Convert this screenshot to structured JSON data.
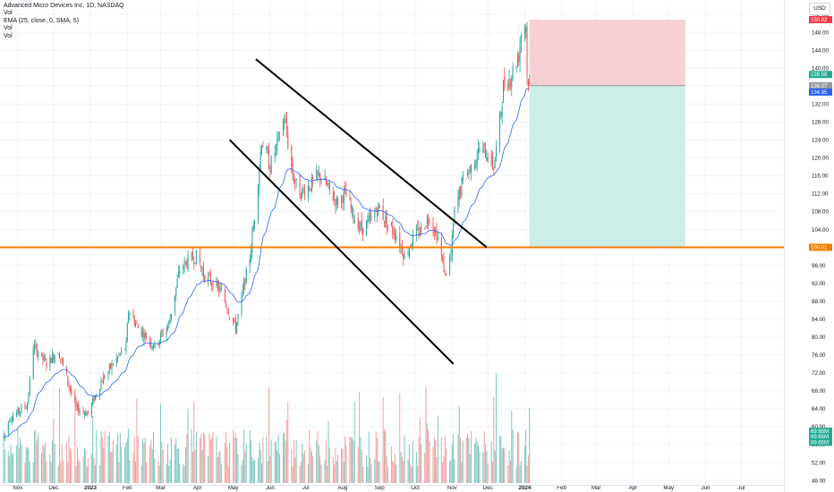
{
  "legend": {
    "title": "Advanced Micro Devices Inc, 1D, NASDAQ",
    "line2": "Vol",
    "line3": "EMA (25, close, 0, SMA, 5)",
    "line4": "Vol",
    "line5": "Vol"
  },
  "currency_button": "USD",
  "colors": {
    "up": "#26a69a",
    "down": "#ef5350",
    "ema": "#2962ff",
    "support": "#f57c00",
    "trendline": "#000000",
    "stop_zone": "#f8d0d4",
    "target_zone": "#cdeee7"
  },
  "chart_data": {
    "type": "candlestick",
    "title": "Advanced Micro Devices Inc, 1D, NASDAQ",
    "symbol": "AMD",
    "interval": "1D",
    "exchange": "NASDAQ",
    "x_ticks": [
      "Nov",
      "Dec",
      "2023",
      "Feb",
      "Mar",
      "Apr",
      "May",
      "Jun",
      "Jul",
      "Aug",
      "Sep",
      "Oct",
      "Nov",
      "Dec",
      "2024",
      "Feb",
      "Mar",
      "Apr",
      "May",
      "Jun",
      "Jul"
    ],
    "y_ticks": [
      48,
      52,
      56,
      60,
      64,
      68,
      72,
      76,
      80,
      84,
      88,
      92,
      96,
      100,
      104,
      108,
      112,
      116,
      120,
      124,
      128,
      132,
      136,
      140,
      144,
      148,
      152
    ],
    "ylim": [
      47,
      153
    ],
    "price_labels": [
      {
        "value": "150.82",
        "kind": "stop"
      },
      {
        "value": "138.58",
        "kind": "last"
      },
      {
        "value": "136.07",
        "kind": "entry"
      },
      {
        "value": "134.95",
        "kind": "ema"
      },
      {
        "value": "100.01",
        "kind": "support"
      },
      {
        "value": "69.65M",
        "kind": "volume"
      },
      {
        "value": "69.65M",
        "kind": "volume"
      },
      {
        "value": "69.65M",
        "kind": "volume"
      }
    ],
    "price_anchors": [
      [
        "2022-10-20",
        57.5
      ],
      [
        "2022-10-25",
        62
      ],
      [
        "2022-10-31",
        63
      ],
      [
        "2022-11-09",
        65
      ],
      [
        "2022-11-14",
        78
      ],
      [
        "2022-11-25",
        74
      ],
      [
        "2022-12-05",
        77
      ],
      [
        "2022-12-20",
        64
      ],
      [
        "2022-12-30",
        63
      ],
      [
        "2023-01-10",
        70
      ],
      [
        "2023-01-20",
        74
      ],
      [
        "2023-01-31",
        78
      ],
      [
        "2023-02-02",
        86
      ],
      [
        "2023-02-10",
        82
      ],
      [
        "2023-02-24",
        78
      ],
      [
        "2023-03-08",
        83
      ],
      [
        "2023-03-17",
        95
      ],
      [
        "2023-03-24",
        97
      ],
      [
        "2023-03-31",
        98
      ],
      [
        "2023-04-06",
        94
      ],
      [
        "2023-04-14",
        92
      ],
      [
        "2023-04-21",
        90
      ],
      [
        "2023-04-27",
        86
      ],
      [
        "2023-05-03",
        82
      ],
      [
        "2023-05-09",
        90
      ],
      [
        "2023-05-15",
        98
      ],
      [
        "2023-05-19",
        107
      ],
      [
        "2023-05-25",
        124
      ],
      [
        "2023-06-01",
        118
      ],
      [
        "2023-06-08",
        124
      ],
      [
        "2023-06-13",
        129
      ],
      [
        "2023-06-20",
        116
      ],
      [
        "2023-06-26",
        112
      ],
      [
        "2023-07-05",
        114
      ],
      [
        "2023-07-13",
        116
      ],
      [
        "2023-07-20",
        113
      ],
      [
        "2023-07-27",
        110
      ],
      [
        "2023-08-03",
        112
      ],
      [
        "2023-08-10",
        107
      ],
      [
        "2023-08-17",
        104
      ],
      [
        "2023-08-24",
        106
      ],
      [
        "2023-08-31",
        109
      ],
      [
        "2023-09-08",
        105
      ],
      [
        "2023-09-15",
        103
      ],
      [
        "2023-09-22",
        98
      ],
      [
        "2023-09-29",
        102
      ],
      [
        "2023-10-06",
        104
      ],
      [
        "2023-10-13",
        107
      ],
      [
        "2023-10-20",
        102
      ],
      [
        "2023-10-26",
        94
      ],
      [
        "2023-10-31",
        98
      ],
      [
        "2023-11-03",
        108
      ],
      [
        "2023-11-10",
        115
      ],
      [
        "2023-11-17",
        118
      ],
      [
        "2023-11-24",
        122
      ],
      [
        "2023-11-30",
        121
      ],
      [
        "2023-12-06",
        118
      ],
      [
        "2023-12-11",
        128
      ],
      [
        "2023-12-14",
        136
      ],
      [
        "2023-12-20",
        138
      ],
      [
        "2023-12-27",
        143
      ],
      [
        "2023-12-29",
        148
      ],
      [
        "2024-01-02",
        150
      ],
      [
        "2024-01-03",
        138
      ],
      [
        "2024-01-05",
        136
      ]
    ],
    "ema": {
      "name": "EMA (25, close, 0, SMA, 5)",
      "approx_last": 134.95
    },
    "drawings": {
      "support_line": {
        "price": 100.01
      },
      "trendlines": [
        {
          "from": [
            "2023-05-20",
            142
          ],
          "to": [
            "2023-11-30",
            100
          ]
        },
        {
          "from": [
            "2023-04-28",
            124
          ],
          "to": [
            "2023-11-02",
            74
          ]
        }
      ],
      "short_position": {
        "start": "2024-01-05",
        "end": "2024-05-15",
        "entry": 136.07,
        "stop": 150.82,
        "target": 100.01
      }
    },
    "volume": {
      "last_label": "69.65M"
    }
  }
}
